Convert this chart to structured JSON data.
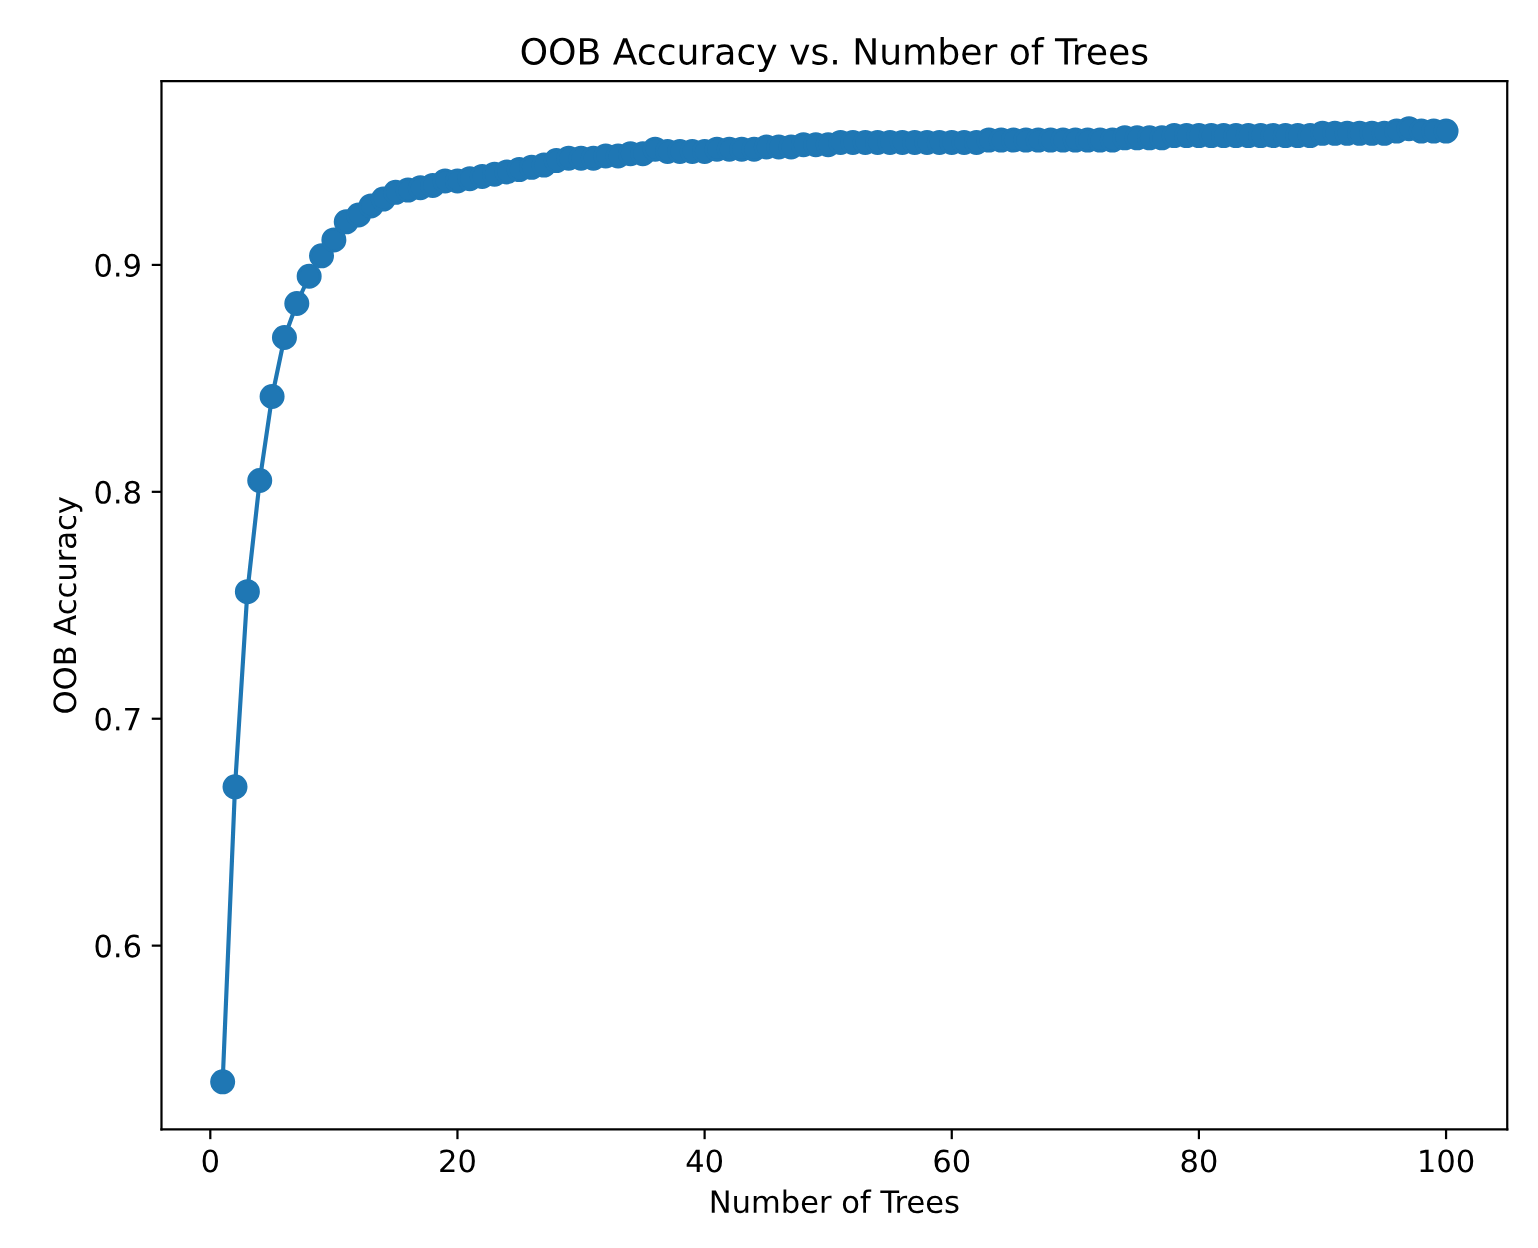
{
  "chart_data": {
    "type": "line",
    "title": "OOB Accuracy vs. Number of Trees",
    "xlabel": "Number of Trees",
    "ylabel": "OOB Accuracy",
    "marker": "circle",
    "line_style": "solid",
    "grid": false,
    "x": [
      1,
      2,
      3,
      4,
      5,
      6,
      7,
      8,
      9,
      10,
      11,
      12,
      13,
      14,
      15,
      16,
      17,
      18,
      19,
      20,
      21,
      22,
      23,
      24,
      25,
      26,
      27,
      28,
      29,
      30,
      31,
      32,
      33,
      34,
      35,
      36,
      37,
      38,
      39,
      40,
      41,
      42,
      43,
      44,
      45,
      46,
      47,
      48,
      49,
      50,
      51,
      52,
      53,
      54,
      55,
      56,
      57,
      58,
      59,
      60,
      61,
      62,
      63,
      64,
      65,
      66,
      67,
      68,
      69,
      70,
      71,
      72,
      73,
      74,
      75,
      76,
      77,
      78,
      79,
      80,
      81,
      82,
      83,
      84,
      85,
      86,
      87,
      88,
      89,
      90,
      91,
      92,
      93,
      94,
      95,
      96,
      97,
      98,
      99,
      100
    ],
    "series": [
      {
        "color": "#1f77b4",
        "values": [
          0.54,
          0.67,
          0.756,
          0.805,
          0.842,
          0.868,
          0.883,
          0.895,
          0.904,
          0.911,
          0.919,
          0.922,
          0.926,
          0.929,
          0.932,
          0.933,
          0.934,
          0.935,
          0.937,
          0.937,
          0.938,
          0.939,
          0.94,
          0.941,
          0.942,
          0.943,
          0.944,
          0.946,
          0.947,
          0.947,
          0.947,
          0.948,
          0.948,
          0.949,
          0.949,
          0.951,
          0.95,
          0.95,
          0.95,
          0.95,
          0.951,
          0.951,
          0.951,
          0.951,
          0.952,
          0.952,
          0.952,
          0.953,
          0.953,
          0.953,
          0.954,
          0.954,
          0.954,
          0.954,
          0.954,
          0.954,
          0.954,
          0.954,
          0.954,
          0.954,
          0.954,
          0.954,
          0.955,
          0.955,
          0.955,
          0.955,
          0.955,
          0.955,
          0.955,
          0.955,
          0.955,
          0.955,
          0.955,
          0.956,
          0.956,
          0.956,
          0.956,
          0.957,
          0.957,
          0.957,
          0.957,
          0.957,
          0.957,
          0.957,
          0.957,
          0.957,
          0.957,
          0.957,
          0.957,
          0.958,
          0.958,
          0.958,
          0.958,
          0.958,
          0.958,
          0.959,
          0.96,
          0.959,
          0.959,
          0.959
        ]
      }
    ],
    "xlim": [
      -3.95,
      104.95
    ],
    "ylim": [
      0.519,
      0.981
    ],
    "xticks": [
      0,
      20,
      40,
      60,
      80,
      100
    ],
    "yticks": [
      0.6,
      0.7,
      0.8,
      0.9
    ]
  }
}
